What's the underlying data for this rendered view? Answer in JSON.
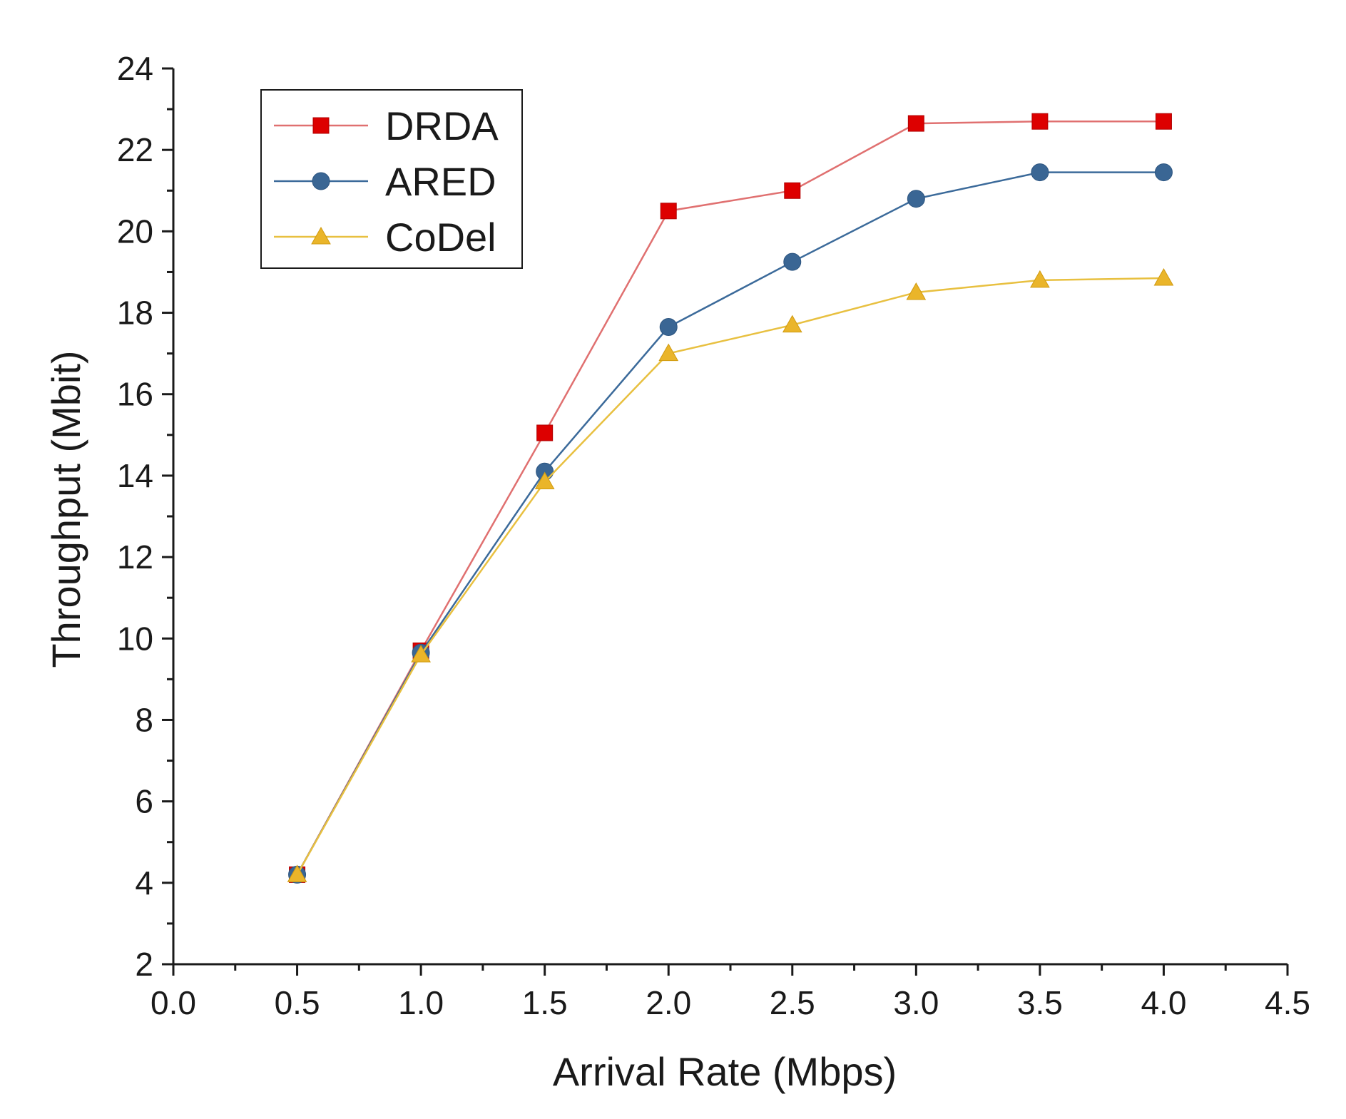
{
  "chart_data": {
    "type": "line",
    "title": "",
    "xlabel": "Arrival Rate (Mbps)",
    "ylabel": "Throughput (Mbit)",
    "xlim": [
      0.0,
      4.5
    ],
    "ylim": [
      2,
      24
    ],
    "x_ticks": [
      "0.0",
      "0.5",
      "1.0",
      "1.5",
      "2.0",
      "2.5",
      "3.0",
      "3.5",
      "4.0",
      "4.5"
    ],
    "y_ticks": [
      "2",
      "4",
      "6",
      "8",
      "10",
      "12",
      "14",
      "16",
      "18",
      "20",
      "22",
      "24"
    ],
    "x": [
      0.5,
      1.0,
      1.5,
      2.0,
      2.5,
      3.0,
      3.5,
      4.0
    ],
    "grid": false,
    "legend_position": "top-left",
    "series": [
      {
        "name": "DRDA",
        "marker": "square",
        "line_color": "#e07070",
        "marker_color": "#dd0000",
        "values": [
          4.2,
          9.7,
          15.05,
          20.5,
          21.0,
          22.65,
          22.7,
          22.7
        ]
      },
      {
        "name": "ARED",
        "marker": "circle",
        "line_color": "#3b6a9a",
        "marker_color": "#3a6694",
        "values": [
          4.2,
          9.65,
          14.1,
          17.65,
          19.25,
          20.8,
          21.45,
          21.45
        ]
      },
      {
        "name": "CoDel",
        "marker": "triangle",
        "line_color": "#e8c040",
        "marker_color": "#eab52a",
        "values": [
          4.2,
          9.6,
          13.85,
          17.0,
          17.7,
          18.5,
          18.8,
          18.85
        ]
      }
    ]
  }
}
